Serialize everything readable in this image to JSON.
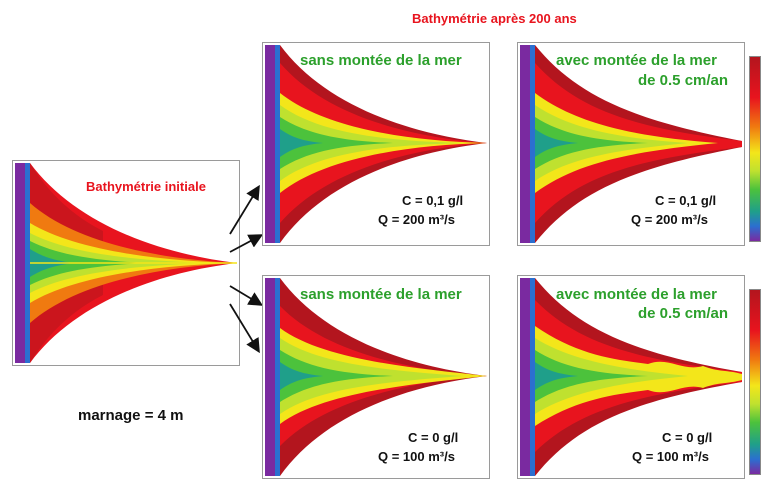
{
  "header": {
    "title": "Bathymétrie après 200 ans"
  },
  "initial": {
    "label": "Bathymétrie initiale",
    "marnage": "marnage = 4 m"
  },
  "scenarios": [
    {
      "title_line1": "sans montée de la mer",
      "title_line2": "",
      "c": "C = 0,1 g/l",
      "q": "Q = 200 m³/s"
    },
    {
      "title_line1": "avec montée de la mer",
      "title_line2": "de 0.5 cm/an",
      "c": "C = 0,1 g/l",
      "q": "Q = 200 m³/s"
    },
    {
      "title_line1": "sans montée de la mer",
      "title_line2": "",
      "c": "C = 0 g/l",
      "q": "Q = 100 m³/s"
    },
    {
      "title_line1": "avec montée de la mer",
      "title_line2": "de 0.5 cm/an",
      "c": "C = 0 g/l",
      "q": "Q = 100 m³/s"
    }
  ],
  "colors": {
    "border": "#7a2aa0",
    "dark_red": "#b3151e",
    "red": "#e8141e",
    "orange": "#f07a10",
    "yellow": "#f3e61a",
    "yellow_green": "#bfe12f",
    "green": "#4cc23c",
    "teal": "#1f9f8a",
    "title_red": "#e8141e",
    "title_green": "#2ca02c"
  }
}
